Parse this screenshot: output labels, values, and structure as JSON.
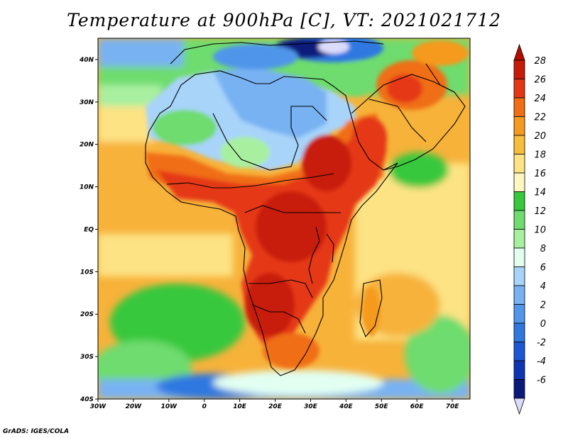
{
  "title": "Temperature at 900hPa [C], VT: 2021021712",
  "credit": "GrADS: IGES/COLA",
  "map": {
    "lon_range": [
      -30,
      75
    ],
    "lat_range": [
      -40,
      45
    ],
    "lat_ticks": [
      {
        "lat": 40,
        "label": "40N"
      },
      {
        "lat": 30,
        "label": "30N"
      },
      {
        "lat": 20,
        "label": "20N"
      },
      {
        "lat": 10,
        "label": "10N"
      },
      {
        "lat": 0,
        "label": "EQ"
      },
      {
        "lat": -10,
        "label": "10S"
      },
      {
        "lat": -20,
        "label": "20S"
      },
      {
        "lat": -30,
        "label": "30S"
      },
      {
        "lat": -40,
        "label": "40S"
      }
    ],
    "lon_ticks": [
      {
        "lon": -30,
        "label": "30W"
      },
      {
        "lon": -20,
        "label": "20W"
      },
      {
        "lon": -10,
        "label": "10W"
      },
      {
        "lon": 0,
        "label": "0"
      },
      {
        "lon": 10,
        "label": "10E"
      },
      {
        "lon": 20,
        "label": "20E"
      },
      {
        "lon": 30,
        "label": "30E"
      },
      {
        "lon": 40,
        "label": "40E"
      },
      {
        "lon": 50,
        "label": "50E"
      },
      {
        "lon": 60,
        "label": "60E"
      },
      {
        "lon": 70,
        "label": "70E"
      }
    ]
  },
  "colorbar": {
    "levels": [
      {
        "label": "28",
        "color": "#c81a08"
      },
      {
        "label": "26",
        "color": "#e53714"
      },
      {
        "label": "24",
        "color": "#f06e14"
      },
      {
        "label": "22",
        "color": "#f59a1e"
      },
      {
        "label": "20",
        "color": "#f9bd3c"
      },
      {
        "label": "18",
        "color": "#fde384"
      },
      {
        "label": "16",
        "color": "#fff6c0"
      },
      {
        "label": "14",
        "color": "#37c83c"
      },
      {
        "label": "12",
        "color": "#6edc6e"
      },
      {
        "label": "10",
        "color": "#a8f0a0"
      },
      {
        "label": "8",
        "color": "#e2fff2"
      },
      {
        "label": "6",
        "color": "#a8d4fa"
      },
      {
        "label": "4",
        "color": "#78b2f2"
      },
      {
        "label": "2",
        "color": "#5096ea"
      },
      {
        "label": "0",
        "color": "#2e78e0"
      },
      {
        "label": "-2",
        "color": "#1c58d4"
      },
      {
        "label": "-4",
        "color": "#1035b4"
      },
      {
        "label": "-6",
        "color": "#0a1a7a"
      }
    ],
    "top_color": "#b40c00",
    "bottom_color": "#dcdcfa"
  },
  "colors": {
    "ocean_warm": "#f7b23a",
    "ocean_mid": "#fde384",
    "ocean_cool": "#fff6c0",
    "land_hot": "#e53714",
    "land_hotter": "#c81a08",
    "land_warm": "#f06e14",
    "land_mid": "#f59a1e",
    "green_dark": "#37c83c",
    "green_mid": "#6edc6e",
    "green_light": "#a8f0a0",
    "cyan_light": "#e2fff2",
    "blue_light": "#a8d4fa",
    "blue_mid": "#78b2f2",
    "blue": "#5096ea",
    "blue_dark": "#2e78e0",
    "navy": "#0a1a7a",
    "lavender": "#dcdcfa",
    "border": "#000000"
  }
}
